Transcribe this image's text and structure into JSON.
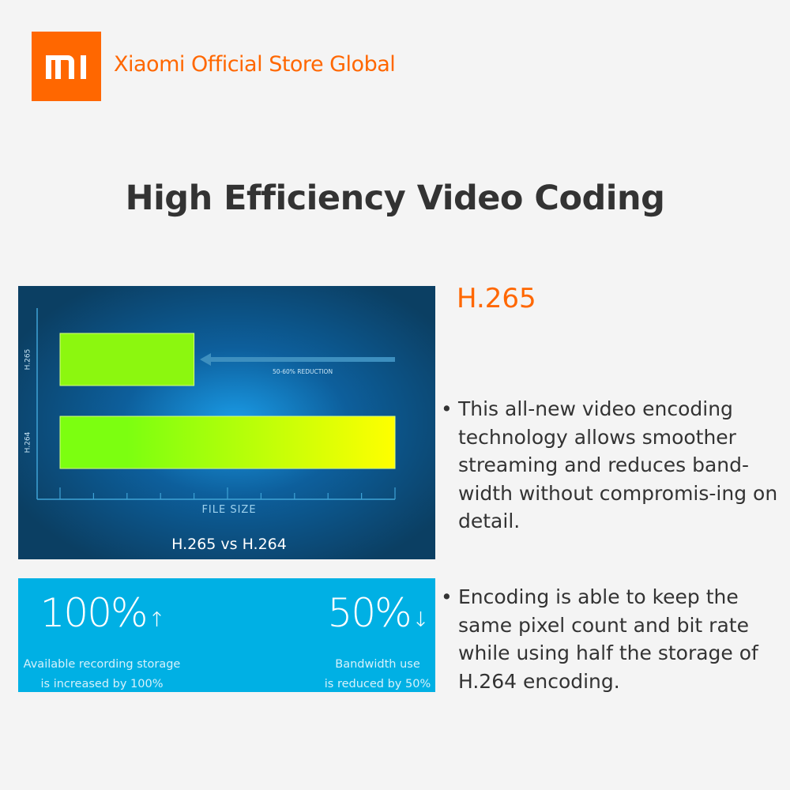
{
  "header": {
    "brand": "Xiaomi Official Store Global",
    "logo_text": "MI",
    "brand_color": "#ff6700"
  },
  "title": "High Efficiency Video Coding",
  "chart_data": {
    "type": "bar",
    "orientation": "horizontal",
    "title": "H.265 vs H.264",
    "xlabel": "FILE SIZE",
    "categories": [
      "H.265",
      "H.264"
    ],
    "values": [
      4,
      10
    ],
    "xlim": [
      0,
      10
    ],
    "annotation": "50-60% REDUCTION",
    "grid": false
  },
  "stats": [
    {
      "value": "100%",
      "arrow": "↑",
      "caption_line1": "Available recording storage",
      "caption_line2": "is increased by 100%"
    },
    {
      "value": "50%",
      "arrow": "↓",
      "caption_line1": "Bandwidth use",
      "caption_line2": "is reduced by 50%"
    }
  ],
  "side": {
    "title": "H.265",
    "bullet_char": "•",
    "bullets": [
      "This all-new video encoding technology allows smoother streaming and reduces band-width without compromis-ing on detail.",
      "Encoding is able to keep the same pixel count and bit rate while using half the storage of H.264 encoding."
    ]
  }
}
